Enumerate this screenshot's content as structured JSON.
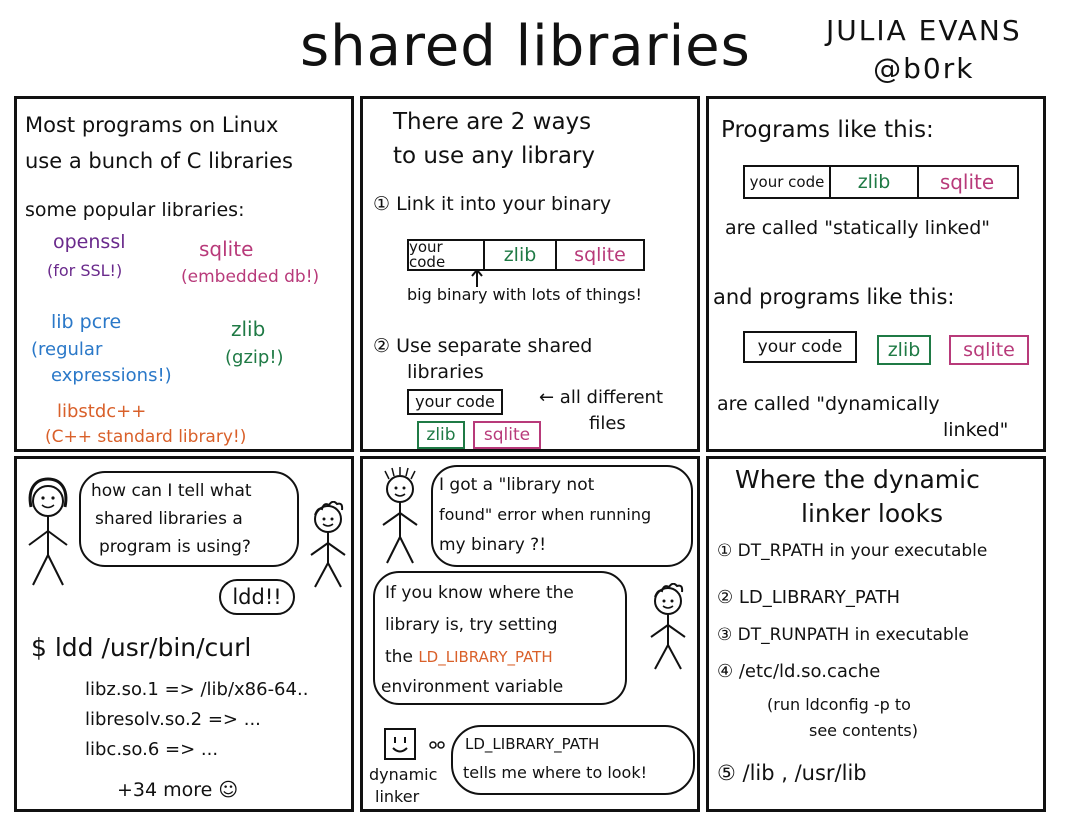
{
  "header": {
    "title": "shared libraries",
    "author": "JULIA EVANS",
    "handle": "@b0rk"
  },
  "colors": {
    "ink": "#111111",
    "purple": "#6a2a8c",
    "magenta": "#b83a7a",
    "blue": "#2a78c8",
    "green": "#1f7a45",
    "orange": "#d9602a"
  },
  "panel1": {
    "line1": "Most programs on Linux",
    "line2": "use a bunch of C libraries",
    "popular": "some popular libraries:",
    "openssl": "openssl",
    "openssl_note": "(for SSL!)",
    "sqlite": "sqlite",
    "sqlite_note": "(embedded db!)",
    "pcre": "lib pcre",
    "pcre_note1": "(regular",
    "pcre_note2": "expressions!)",
    "zlib": "zlib",
    "zlib_note": "(gzip!)",
    "stdcpp": "libstdc++",
    "stdcpp_note": "(C++ standard library!)"
  },
  "panel2": {
    "line1": "There are 2 ways",
    "line2": "to use any library",
    "way1": "① Link it into your binary",
    "your_code": "your code",
    "zlib": "zlib",
    "sqlite": "sqlite",
    "big_binary": "big binary with lots of things!",
    "way2a": "② Use separate shared",
    "way2b": "libraries",
    "all_diff1": "← all different",
    "all_diff2": "files"
  },
  "panel3": {
    "line1": "Programs like this:",
    "your_code": "your code",
    "zlib": "zlib",
    "sqlite": "sqlite",
    "static": "are called \"statically linked\"",
    "and_programs": "and programs like this:",
    "dynamic1": "are called \"dynamically",
    "dynamic2": "linked\""
  },
  "panel4": {
    "q1": "how can I tell what",
    "q2": "shared libraries a",
    "q3": "program is using?",
    "answer": "ldd!!",
    "cmd": "$ ldd /usr/bin/curl",
    "out1": "libz.so.1 => /lib/x86-64..",
    "out2": "libresolv.so.2 => ...",
    "out3": "libc.so.6 => ...",
    "more": "+34 more ☺"
  },
  "panel5": {
    "err1": "I got a \"library not",
    "err2": "found\" error when running",
    "err3": "my binary ?!",
    "tip1": "If you know where the",
    "tip2": "library is, try setting",
    "tip3_prefix": "the",
    "tip3_var": "LD_LIBRARY_PATH",
    "tip4": "environment variable",
    "cloud1": "LD_LIBRARY_PATH",
    "cloud2": "tells me where to look!",
    "linker1": "dynamic",
    "linker2": "linker"
  },
  "panel6": {
    "head1": "Where the dynamic",
    "head2": "linker looks",
    "item1": "① DT_RPATH in your executable",
    "item2": "② LD_LIBRARY_PATH",
    "item3": "③ DT_RUNPATH in executable",
    "item4": "④ /etc/ld.so.cache",
    "item4_note1": "(run ldconfig -p to",
    "item4_note2": "see contents)",
    "item5": "⑤ /lib , /usr/lib"
  }
}
